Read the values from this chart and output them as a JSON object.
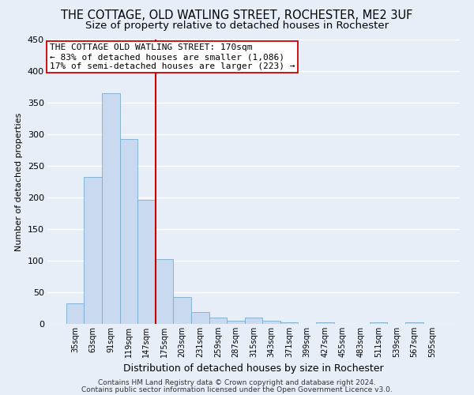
{
  "title": "THE COTTAGE, OLD WATLING STREET, ROCHESTER, ME2 3UF",
  "subtitle": "Size of property relative to detached houses in Rochester",
  "xlabel": "Distribution of detached houses by size in Rochester",
  "ylabel": "Number of detached properties",
  "bar_labels": [
    "35sqm",
    "63sqm",
    "91sqm",
    "119sqm",
    "147sqm",
    "175sqm",
    "203sqm",
    "231sqm",
    "259sqm",
    "287sqm",
    "315sqm",
    "343sqm",
    "371sqm",
    "399sqm",
    "427sqm",
    "455sqm",
    "483sqm",
    "511sqm",
    "539sqm",
    "567sqm",
    "595sqm"
  ],
  "bar_values": [
    33,
    233,
    365,
    293,
    196,
    102,
    43,
    19,
    10,
    5,
    10,
    5,
    2,
    0,
    2,
    0,
    0,
    2,
    0,
    2,
    0
  ],
  "bar_color": "#c9daf0",
  "bar_edge_color": "#7aadce",
  "vline_x": 4.5,
  "vline_color": "#cc0000",
  "annotation_text": "THE COTTAGE OLD WATLING STREET: 170sqm\n← 83% of detached houses are smaller (1,086)\n17% of semi-detached houses are larger (223) →",
  "annotation_box_color": "#ffffff",
  "annotation_box_edge": "#cc0000",
  "ylim": [
    0,
    450
  ],
  "yticks": [
    0,
    50,
    100,
    150,
    200,
    250,
    300,
    350,
    400,
    450
  ],
  "footnote1": "Contains HM Land Registry data © Crown copyright and database right 2024.",
  "footnote2": "Contains public sector information licensed under the Open Government Licence v3.0.",
  "background_color": "#e8eef8",
  "plot_background": "#e8eef8",
  "grid_color": "#ffffff",
  "title_fontsize": 10.5,
  "subtitle_fontsize": 9.5,
  "xlabel_fontsize": 9,
  "ylabel_fontsize": 8,
  "tick_fontsize": 8,
  "annot_fontsize": 8
}
